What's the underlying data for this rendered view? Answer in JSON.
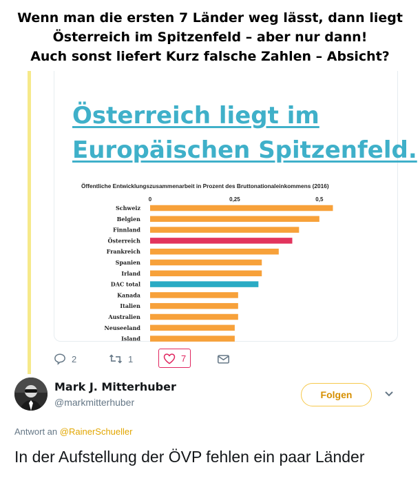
{
  "caption": {
    "line1": "Wenn man die ersten 7 Länder weg lässt, dann liegt",
    "line2": "Österreich im Spitzenfeld – aber nur dann!",
    "line3": "Auch sonst liefert Kurz falsche Zahlen – Absicht?"
  },
  "card": {
    "headline_line1": "Österreich liegt im",
    "headline_line2": "Europäischen Spitzenfeld."
  },
  "chart_data": {
    "type": "bar",
    "orientation": "horizontal",
    "title": "Öffentliche Entwicklungszusammenarbeit in Prozent des Bruttonationaleinkommens (2016)",
    "categories": [
      "Schweiz",
      "Belgien",
      "Finnland",
      "Österreich",
      "Frankreich",
      "Spanien",
      "Irland",
      "DAC total",
      "Kanada",
      "Italien",
      "Australien",
      "Neuseeland",
      "Island"
    ],
    "values": [
      0.54,
      0.5,
      0.44,
      0.42,
      0.38,
      0.33,
      0.33,
      0.32,
      0.26,
      0.26,
      0.26,
      0.25,
      0.25
    ],
    "xticks": [
      "0",
      "0,25",
      "0,5"
    ],
    "xlim": [
      0,
      0.6
    ],
    "colors": {
      "default": "#f7a13a",
      "highlight": "#e2345d",
      "total": "#2aabc4"
    },
    "highlight": "Österreich",
    "total": "DAC total"
  },
  "actions": {
    "reply_count": "2",
    "retweet_count": "1",
    "like_count": "7"
  },
  "user": {
    "name": "Mark J. Mitterhuber",
    "handle": "@markmitterhuber",
    "follow_label": "Folgen"
  },
  "reply": {
    "prefix": "Antwort an",
    "mention": "@RainerSchueller"
  },
  "tweet": {
    "text": "In der Aufstellung der ÖVP fehlen ein paar Länder"
  },
  "icons": [
    "reply-icon",
    "retweet-icon",
    "heart-icon",
    "message-icon",
    "chevron-down-icon"
  ],
  "colors": {
    "accent": "#3fb0c9",
    "follow": "#f6c84a",
    "like": "#e0245e"
  }
}
